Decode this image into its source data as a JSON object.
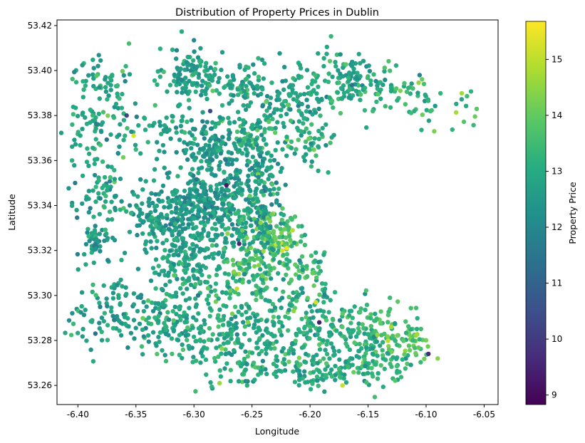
{
  "chart_data": {
    "type": "scatter",
    "title": "Distribution of Property Prices in Dublin",
    "xlabel": "Longitude",
    "ylabel": "Latitude",
    "colorbar_label": "Property Price",
    "xlim": [
      -6.418,
      -6.038
    ],
    "ylim": [
      53.2515,
      53.4225
    ],
    "clim": [
      8.83,
      15.68
    ],
    "colormap": "viridis",
    "x_ticks": [
      -6.4,
      -6.35,
      -6.3,
      -6.25,
      -6.2,
      -6.15,
      -6.1,
      -6.05
    ],
    "x_tick_labels": [
      "-6.40",
      "-6.35",
      "-6.30",
      "-6.25",
      "-6.20",
      "-6.15",
      "-6.10",
      "-6.05"
    ],
    "y_ticks": [
      53.26,
      53.28,
      53.3,
      53.32,
      53.34,
      53.36,
      53.38,
      53.4,
      53.42
    ],
    "y_tick_labels": [
      "53.26",
      "53.28",
      "53.30",
      "53.32",
      "53.34",
      "53.36",
      "53.38",
      "53.40",
      "53.42"
    ],
    "colorbar_ticks": [
      9,
      10,
      11,
      12,
      13,
      14,
      15
    ],
    "colorbar_tick_labels": [
      "9",
      "10",
      "11",
      "12",
      "13",
      "14",
      "15"
    ],
    "grid": false,
    "legend": "none",
    "clusters": [
      {
        "lon": -6.3,
        "lat": 53.398,
        "lon_sd": 0.012,
        "lat_sd": 0.006,
        "n": 120,
        "price": 12.7,
        "price_sd": 0.45
      },
      {
        "lon": -6.255,
        "lat": 53.393,
        "lon_sd": 0.012,
        "lat_sd": 0.006,
        "n": 80,
        "price": 12.8,
        "price_sd": 0.45
      },
      {
        "lon": -6.21,
        "lat": 53.388,
        "lon_sd": 0.015,
        "lat_sd": 0.007,
        "n": 90,
        "price": 12.8,
        "price_sd": 0.45
      },
      {
        "lon": -6.16,
        "lat": 53.395,
        "lon_sd": 0.018,
        "lat_sd": 0.007,
        "n": 130,
        "price": 12.9,
        "price_sd": 0.45
      },
      {
        "lon": -6.12,
        "lat": 53.389,
        "lon_sd": 0.012,
        "lat_sd": 0.004,
        "n": 30,
        "price": 13.3,
        "price_sd": 0.5
      },
      {
        "lon": -6.1,
        "lat": 53.385,
        "lon_sd": 0.008,
        "lat_sd": 0.007,
        "n": 12,
        "price": 13.5,
        "price_sd": 0.5
      },
      {
        "lon": -6.065,
        "lat": 53.382,
        "lon_sd": 0.005,
        "lat_sd": 0.005,
        "n": 12,
        "price": 13.6,
        "price_sd": 0.5
      },
      {
        "lon": -6.38,
        "lat": 53.398,
        "lon_sd": 0.012,
        "lat_sd": 0.005,
        "n": 45,
        "price": 12.8,
        "price_sd": 0.45
      },
      {
        "lon": -6.382,
        "lat": 53.377,
        "lon_sd": 0.014,
        "lat_sd": 0.008,
        "n": 70,
        "price": 12.9,
        "price_sd": 0.5
      },
      {
        "lon": -6.33,
        "lat": 53.375,
        "lon_sd": 0.015,
        "lat_sd": 0.006,
        "n": 50,
        "price": 12.8,
        "price_sd": 0.45
      },
      {
        "lon": -6.248,
        "lat": 53.372,
        "lon_sd": 0.015,
        "lat_sd": 0.006,
        "n": 80,
        "price": 13.1,
        "price_sd": 0.45
      },
      {
        "lon": -6.205,
        "lat": 53.368,
        "lon_sd": 0.012,
        "lat_sd": 0.006,
        "n": 50,
        "price": 13.2,
        "price_sd": 0.5
      },
      {
        "lon": -6.285,
        "lat": 53.366,
        "lon_sd": 0.015,
        "lat_sd": 0.008,
        "n": 140,
        "price": 12.5,
        "price_sd": 0.45
      },
      {
        "lon": -6.245,
        "lat": 53.355,
        "lon_sd": 0.012,
        "lat_sd": 0.008,
        "n": 90,
        "price": 12.6,
        "price_sd": 0.45
      },
      {
        "lon": -6.378,
        "lat": 53.342,
        "lon_sd": 0.014,
        "lat_sd": 0.01,
        "n": 80,
        "price": 12.8,
        "price_sd": 0.45
      },
      {
        "lon": -6.387,
        "lat": 53.322,
        "lon_sd": 0.008,
        "lat_sd": 0.006,
        "n": 40,
        "price": 12.6,
        "price_sd": 0.45
      },
      {
        "lon": -6.32,
        "lat": 53.335,
        "lon_sd": 0.02,
        "lat_sd": 0.01,
        "n": 220,
        "price": 12.5,
        "price_sd": 0.45
      },
      {
        "lon": -6.285,
        "lat": 53.343,
        "lon_sd": 0.015,
        "lat_sd": 0.008,
        "n": 180,
        "price": 12.5,
        "price_sd": 0.45
      },
      {
        "lon": -6.245,
        "lat": 53.335,
        "lon_sd": 0.012,
        "lat_sd": 0.01,
        "n": 160,
        "price": 12.9,
        "price_sd": 0.5
      },
      {
        "lon": -6.228,
        "lat": 53.325,
        "lon_sd": 0.008,
        "lat_sd": 0.006,
        "n": 70,
        "price": 13.9,
        "price_sd": 0.5
      },
      {
        "lon": -6.3,
        "lat": 53.315,
        "lon_sd": 0.02,
        "lat_sd": 0.009,
        "n": 180,
        "price": 12.8,
        "price_sd": 0.45
      },
      {
        "lon": -6.252,
        "lat": 53.312,
        "lon_sd": 0.015,
        "lat_sd": 0.008,
        "n": 120,
        "price": 13.4,
        "price_sd": 0.5
      },
      {
        "lon": -6.205,
        "lat": 53.308,
        "lon_sd": 0.012,
        "lat_sd": 0.008,
        "n": 80,
        "price": 13.2,
        "price_sd": 0.5
      },
      {
        "lon": -6.372,
        "lat": 53.293,
        "lon_sd": 0.018,
        "lat_sd": 0.008,
        "n": 90,
        "price": 12.6,
        "price_sd": 0.45
      },
      {
        "lon": -6.315,
        "lat": 53.288,
        "lon_sd": 0.02,
        "lat_sd": 0.008,
        "n": 150,
        "price": 12.9,
        "price_sd": 0.45
      },
      {
        "lon": -6.258,
        "lat": 53.283,
        "lon_sd": 0.02,
        "lat_sd": 0.009,
        "n": 160,
        "price": 13.1,
        "price_sd": 0.5
      },
      {
        "lon": -6.2,
        "lat": 53.283,
        "lon_sd": 0.018,
        "lat_sd": 0.009,
        "n": 140,
        "price": 13.1,
        "price_sd": 0.5
      },
      {
        "lon": -6.15,
        "lat": 53.282,
        "lon_sd": 0.015,
        "lat_sd": 0.008,
        "n": 130,
        "price": 13.3,
        "price_sd": 0.5
      },
      {
        "lon": -6.12,
        "lat": 53.28,
        "lon_sd": 0.01,
        "lat_sd": 0.006,
        "n": 60,
        "price": 13.7,
        "price_sd": 0.5
      },
      {
        "lon": -6.2,
        "lat": 53.265,
        "lon_sd": 0.015,
        "lat_sd": 0.004,
        "n": 60,
        "price": 13.1,
        "price_sd": 0.45
      },
      {
        "lon": -6.148,
        "lat": 53.268,
        "lon_sd": 0.015,
        "lat_sd": 0.004,
        "n": 50,
        "price": 13.2,
        "price_sd": 0.45
      },
      {
        "lon": -6.25,
        "lat": 53.268,
        "lon_sd": 0.015,
        "lat_sd": 0.005,
        "n": 40,
        "price": 13.0,
        "price_sd": 0.45
      }
    ],
    "outliers": [
      {
        "lon": -6.356,
        "lat": 53.412,
        "price": 13.6
      },
      {
        "lon": -6.358,
        "lat": 53.38,
        "price": 10.2
      },
      {
        "lon": -6.272,
        "lat": 53.349,
        "price": 9.3
      },
      {
        "lon": -6.261,
        "lat": 53.323,
        "price": 9.6
      },
      {
        "lon": -6.192,
        "lat": 53.288,
        "price": 9.4
      },
      {
        "lon": -6.098,
        "lat": 53.274,
        "price": 9.6
      },
      {
        "lon": -6.286,
        "lat": 53.382,
        "price": 10.4
      },
      {
        "lon": -6.352,
        "lat": 53.371,
        "price": 15.3
      },
      {
        "lon": -6.22,
        "lat": 53.321,
        "price": 15.5
      },
      {
        "lon": -6.224,
        "lat": 53.32,
        "price": 15.2
      },
      {
        "lon": -6.172,
        "lat": 53.26,
        "price": 15.1
      },
      {
        "lon": -6.263,
        "lat": 53.303,
        "price": 15.0
      },
      {
        "lon": -6.195,
        "lat": 53.297,
        "price": 15.2
      },
      {
        "lon": -6.215,
        "lat": 53.329,
        "price": 14.9
      },
      {
        "lon": -6.278,
        "lat": 53.261,
        "price": 14.6
      },
      {
        "lon": -6.093,
        "lat": 53.373,
        "price": 14.3
      },
      {
        "lon": -6.09,
        "lat": 53.272,
        "price": 14.4
      },
      {
        "lon": -6.13,
        "lat": 53.286,
        "price": 14.8
      }
    ]
  }
}
